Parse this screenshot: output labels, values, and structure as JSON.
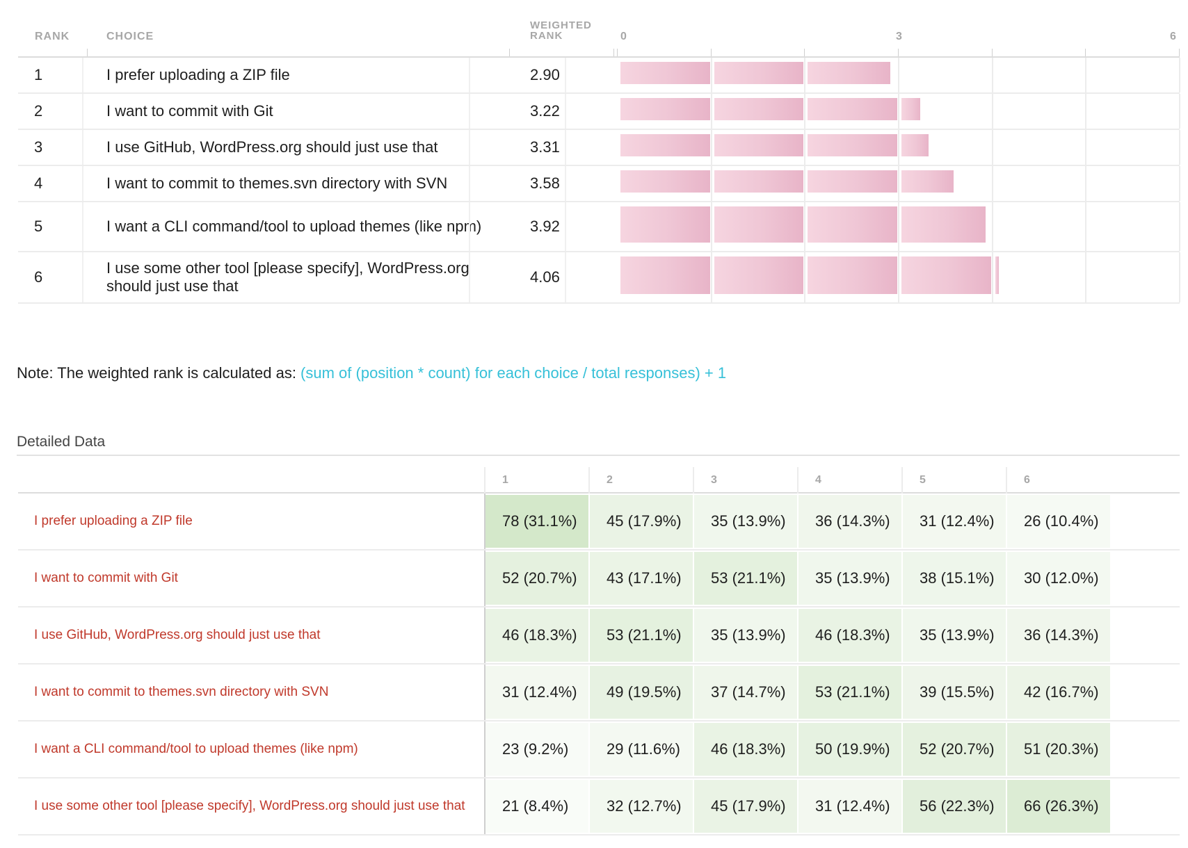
{
  "header": {
    "rank": "RANK",
    "choice": "CHOICE",
    "weighted_rank": "WEIGHTED RANK",
    "ticks": [
      "0",
      "3",
      "6"
    ]
  },
  "note": {
    "prefix": "Note: The weighted rank is calculated as: ",
    "formula": "(sum of (position * count) for each choice / total responses) + 1",
    "formula_color": "#36c0d8"
  },
  "detailed": {
    "title": "Detailed Data",
    "positions": [
      "1",
      "2",
      "3",
      "4",
      "5",
      "6"
    ],
    "label_color": "#c0392b"
  },
  "chart_data": {
    "type": "bar",
    "orientation": "horizontal",
    "xlim": [
      0,
      6
    ],
    "bar_color": "#efc6d5",
    "categories": [
      "I prefer uploading a ZIP file",
      "I want to commit with Git",
      "I use GitHub, WordPress.org should just use that",
      "I want to commit to themes.svn directory with SVN",
      "I want a CLI command/tool to upload themes (like npm)",
      "I use some other tool [please specify], WordPress.org should just use that"
    ],
    "ranks": [
      "1",
      "2",
      "3",
      "4",
      "5",
      "6"
    ],
    "values": [
      2.9,
      3.22,
      3.31,
      3.58,
      3.92,
      4.06
    ],
    "value_labels": [
      "2.90",
      "3.22",
      "3.31",
      "3.58",
      "3.92",
      "4.06"
    ]
  },
  "table": {
    "rows": [
      {
        "label": "I prefer uploading a ZIP file",
        "cells": [
          "78 (31.1%)",
          "45 (17.9%)",
          "35 (13.9%)",
          "36 (14.3%)",
          "31 (12.4%)",
          "26 (10.4%)"
        ],
        "pct": [
          31.1,
          17.9,
          13.9,
          14.3,
          12.4,
          10.4
        ]
      },
      {
        "label": "I want to commit with Git",
        "cells": [
          "52 (20.7%)",
          "43 (17.1%)",
          "53 (21.1%)",
          "35 (13.9%)",
          "38 (15.1%)",
          "30 (12.0%)"
        ],
        "pct": [
          20.7,
          17.1,
          21.1,
          13.9,
          15.1,
          12.0
        ]
      },
      {
        "label": "I use GitHub, WordPress.org should just use that",
        "cells": [
          "46 (18.3%)",
          "53 (21.1%)",
          "35 (13.9%)",
          "46 (18.3%)",
          "35 (13.9%)",
          "36 (14.3%)"
        ],
        "pct": [
          18.3,
          21.1,
          13.9,
          18.3,
          13.9,
          14.3
        ]
      },
      {
        "label": "I want to commit to themes.svn directory with SVN",
        "cells": [
          "31 (12.4%)",
          "49 (19.5%)",
          "37 (14.7%)",
          "53 (21.1%)",
          "39 (15.5%)",
          "42 (16.7%)"
        ],
        "pct": [
          12.4,
          19.5,
          14.7,
          21.1,
          15.5,
          16.7
        ]
      },
      {
        "label": "I want a CLI command/tool to upload themes (like npm)",
        "cells": [
          "23 (9.2%)",
          "29 (11.6%)",
          "46 (18.3%)",
          "50 (19.9%)",
          "52 (20.7%)",
          "51 (20.3%)"
        ],
        "pct": [
          9.2,
          11.6,
          18.3,
          19.9,
          20.7,
          20.3
        ]
      },
      {
        "label": "I use some other tool [please specify], WordPress.org should just use that",
        "cells": [
          "21 (8.4%)",
          "32 (12.7%)",
          "45 (17.9%)",
          "31 (12.4%)",
          "56 (22.3%)",
          "66 (26.3%)"
        ],
        "pct": [
          8.4,
          12.7,
          17.9,
          12.4,
          22.3,
          26.3
        ]
      }
    ]
  }
}
